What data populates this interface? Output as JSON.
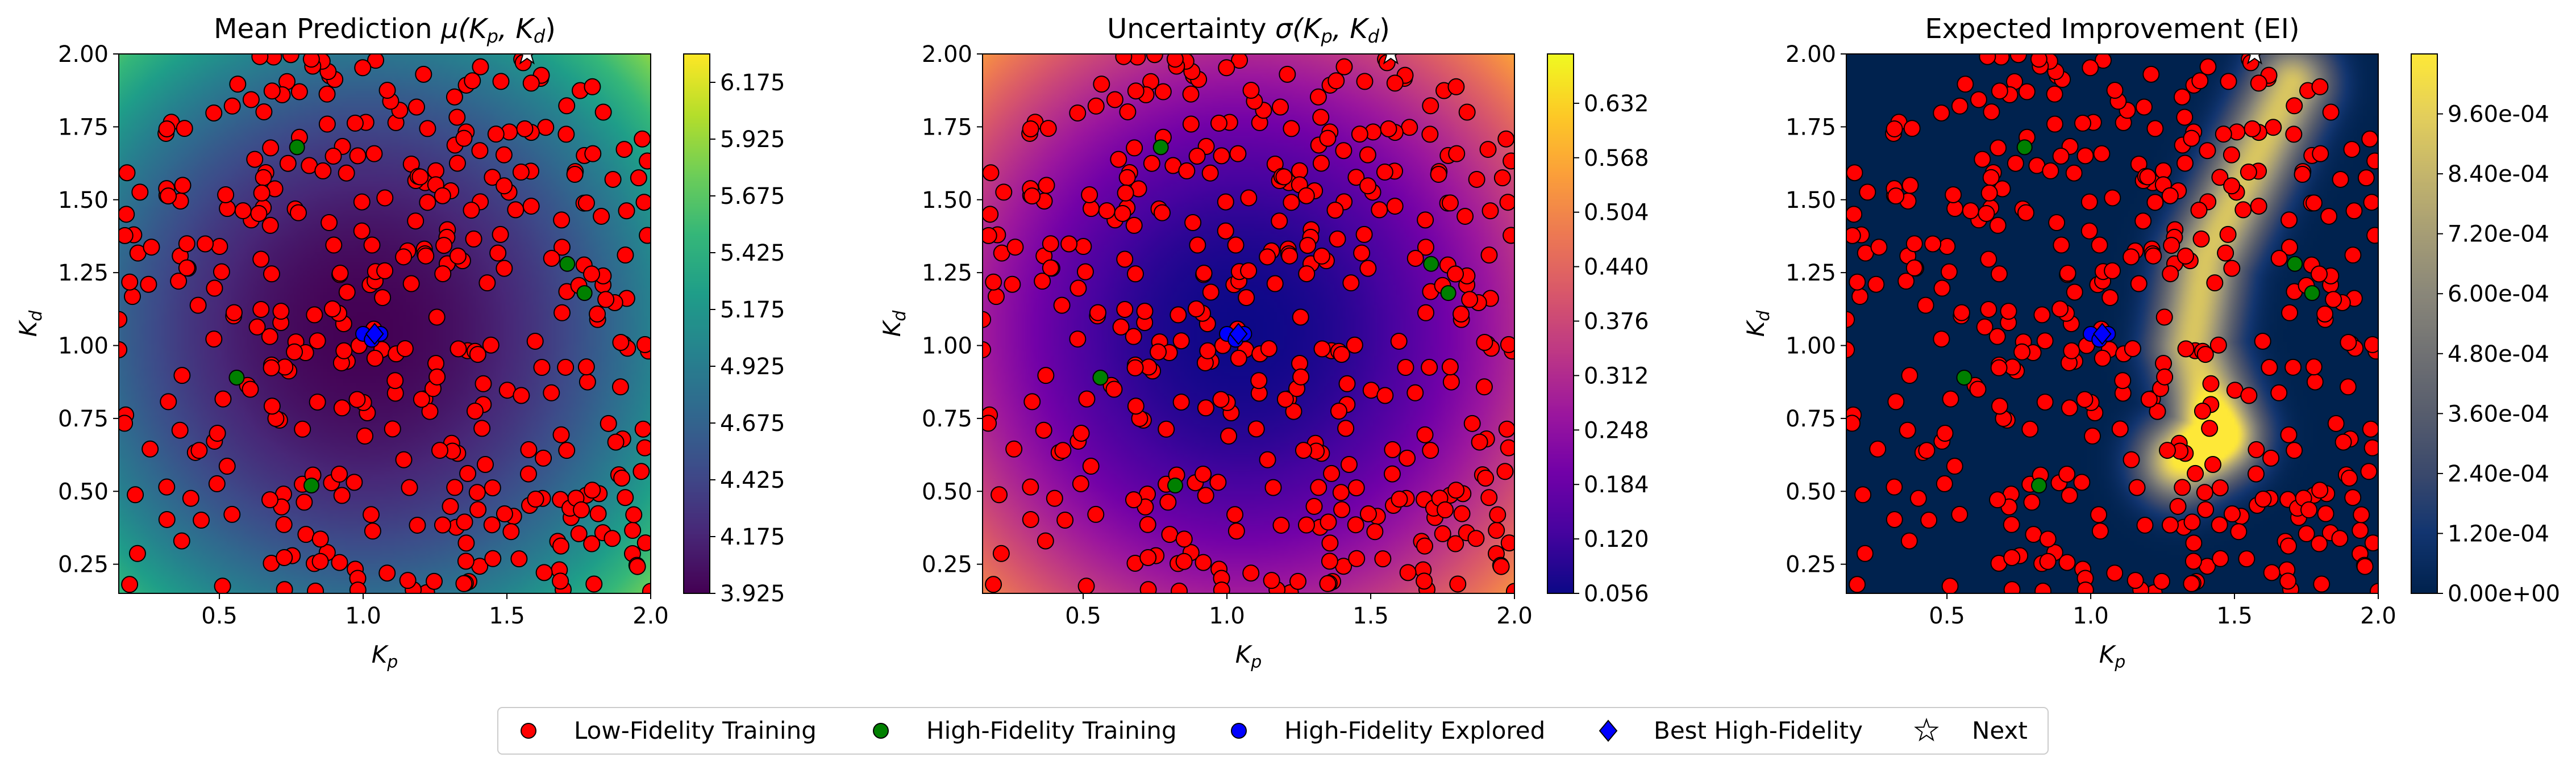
{
  "chart_data": [
    {
      "type": "heatmap",
      "title": "Mean Prediction μ(K_p, K_d)",
      "title_parts": {
        "main": "Mean Prediction ",
        "fn": "μ",
        "args": "(K",
        "sub1": "p",
        "sep": ", K",
        "sub2": "d",
        "close": ")"
      },
      "xlabel": "K_p",
      "ylabel": "K_d",
      "xlim": [
        0.15,
        2.0
      ],
      "ylim": [
        0.15,
        2.0
      ],
      "x_ticks": [
        "0.5",
        "1.0",
        "1.5",
        "2.0"
      ],
      "y_ticks": [
        "0.25",
        "0.50",
        "0.75",
        "1.00",
        "1.25",
        "1.50",
        "1.75",
        "2.00"
      ],
      "colormap": "viridis",
      "colorbar_range": [
        3.925,
        6.3
      ],
      "colorbar_ticks": [
        "3.925",
        "4.175",
        "4.425",
        "4.675",
        "4.925",
        "5.175",
        "5.425",
        "5.675",
        "5.925",
        "6.175"
      ],
      "surface": {
        "kind": "bowl",
        "min_at": [
          1.0,
          1.05
        ],
        "min_value": 3.925,
        "max_value": 6.3
      }
    },
    {
      "type": "heatmap",
      "title": "Uncertainty σ(K_p, K_d)",
      "title_parts": {
        "main": "Uncertainty ",
        "fn": "σ",
        "args": "(K",
        "sub1": "p",
        "sep": ", K",
        "sub2": "d",
        "close": ")"
      },
      "xlabel": "K_p",
      "ylabel": "K_d",
      "xlim": [
        0.15,
        2.0
      ],
      "ylim": [
        0.15,
        2.0
      ],
      "x_ticks": [
        "0.5",
        "1.0",
        "1.5",
        "2.0"
      ],
      "y_ticks": [
        "0.25",
        "0.50",
        "0.75",
        "1.00",
        "1.25",
        "1.50",
        "1.75",
        "2.00"
      ],
      "colormap": "plasma",
      "colorbar_range": [
        0.056,
        0.69
      ],
      "colorbar_ticks": [
        "0.056",
        "0.120",
        "0.184",
        "0.248",
        "0.312",
        "0.376",
        "0.440",
        "0.504",
        "0.568",
        "0.632"
      ],
      "surface": {
        "kind": "bowl",
        "min_at": [
          1.05,
          1.05
        ],
        "min_value": 0.056,
        "max_value": 0.69
      }
    },
    {
      "type": "heatmap",
      "title": "Expected Improvement (EI)",
      "xlabel": "K_p",
      "ylabel": "K_d",
      "xlim": [
        0.15,
        2.0
      ],
      "ylim": [
        0.15,
        2.0
      ],
      "x_ticks": [
        "0.5",
        "1.0",
        "1.5",
        "2.0"
      ],
      "y_ticks": [
        "0.25",
        "0.50",
        "0.75",
        "1.00",
        "1.25",
        "1.50",
        "1.75",
        "2.00"
      ],
      "colormap": "cividis",
      "colorbar_range": [
        0.0,
        0.00108
      ],
      "colorbar_ticks": [
        "0.00e+00",
        "1.20e-04",
        "2.40e-04",
        "3.60e-04",
        "4.80e-04",
        "6.00e-04",
        "7.20e-04",
        "8.40e-04",
        "9.60e-04"
      ],
      "surface": {
        "kind": "ridge",
        "ridge_points": [
          [
            1.3,
            0.6
          ],
          [
            1.45,
            0.7
          ],
          [
            1.35,
            1.0
          ],
          [
            1.4,
            1.3
          ],
          [
            1.55,
            1.6
          ],
          [
            1.7,
            1.9
          ]
        ],
        "max_value": 0.00108
      }
    }
  ],
  "scatter": {
    "low_fidelity_count": 400,
    "high_fidelity_training": [
      [
        0.77,
        1.68
      ],
      [
        1.71,
        1.28
      ],
      [
        1.77,
        1.18
      ],
      [
        0.56,
        0.89
      ],
      [
        0.82,
        0.52
      ]
    ],
    "high_fidelity_explored": [
      [
        1.0,
        1.04
      ],
      [
        1.03,
        1.02
      ],
      [
        1.06,
        1.04
      ]
    ],
    "best_high_fidelity": [
      1.04,
      1.04
    ],
    "next": [
      1.57,
      2.0
    ]
  },
  "legend": [
    {
      "label": "Low-Fidelity Training",
      "marker": "circle",
      "color": "#ff0000"
    },
    {
      "label": "High-Fidelity Training",
      "marker": "circle",
      "color": "#008000"
    },
    {
      "label": "High-Fidelity Explored",
      "marker": "circle",
      "color": "#0000ff"
    },
    {
      "label": "Best High-Fidelity",
      "marker": "diamond",
      "color": "#0000ff"
    },
    {
      "label": "Next",
      "marker": "star",
      "color": "#ffffff"
    }
  ]
}
